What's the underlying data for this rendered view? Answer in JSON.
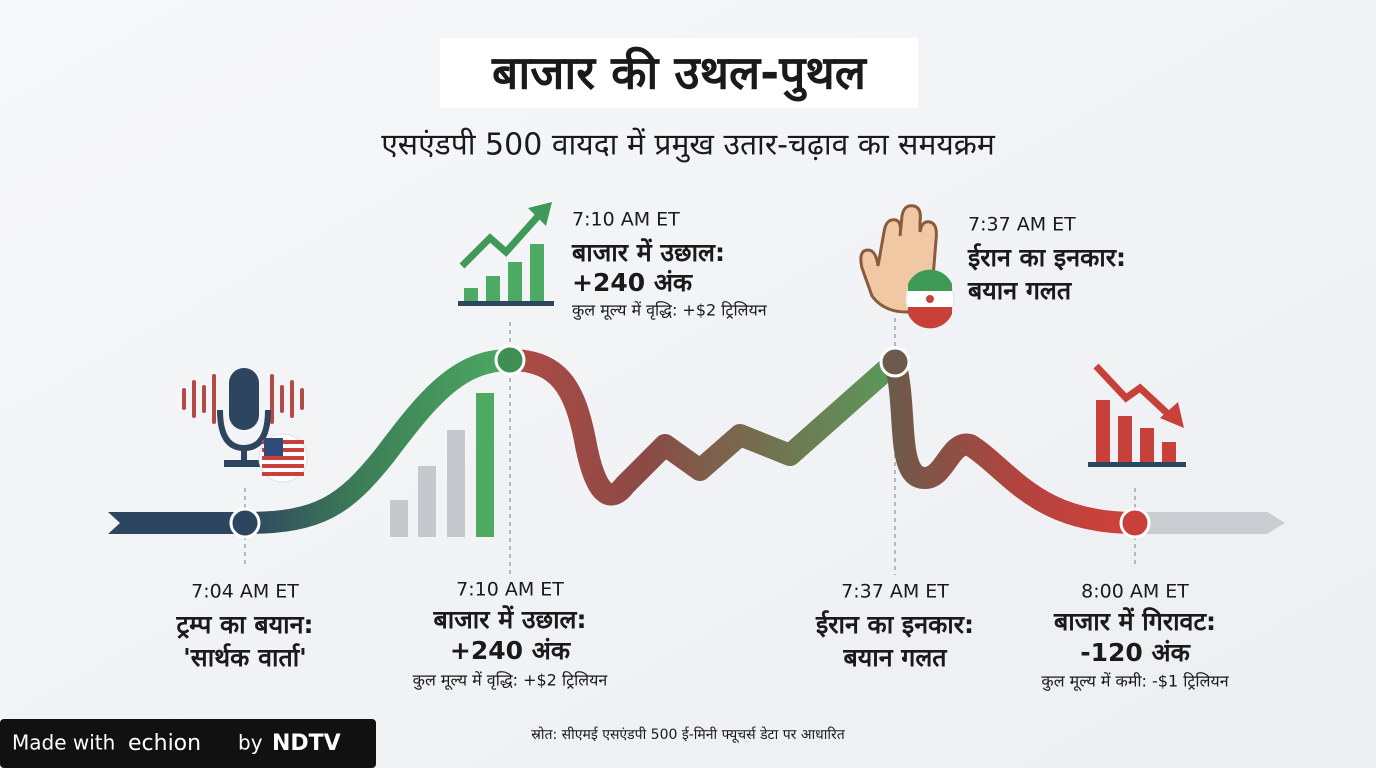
{
  "header": {
    "title": "बाजार की उथल-पुथल",
    "subtitle": "एसएंडपी 500 वायदा में प्रमुख उतार-चढ़ाव का समयक्रम"
  },
  "callouts": [
    {
      "time": "7:10 AM ET",
      "lines": [
        "बाजार में उछाल:",
        "+240 अंक"
      ],
      "note": "कुल मूल्य में वृद्धि: +$2 ट्रिलियन"
    },
    {
      "time": "7:37 AM ET",
      "lines": [
        "ईरान का इनकार:",
        "बयान गलत"
      ]
    }
  ],
  "events": [
    {
      "time": "7:04 AM ET",
      "lines": [
        "ट्रम्प का बयान:",
        "'सार्थक वार्ता'"
      ]
    },
    {
      "time": "7:10 AM ET",
      "lines": [
        "बाजार में उछाल:",
        "+240 अंक"
      ],
      "note": "कुल मूल्य में वृद्धि: +$2 ट्रिलियन"
    },
    {
      "time": "7:37 AM ET",
      "lines": [
        "ईरान का इनकार:",
        "बयान गलत"
      ]
    },
    {
      "time": "8:00 AM ET",
      "lines": [
        "बाजार में गिरावट:",
        "-120 अंक"
      ],
      "note": "कुल मूल्य में कमी: -$1 ट्रिलियन"
    }
  ],
  "source": "स्रोत: सीएमई एसएंडपी 500 ई-मिनी फ्यूचर्स डेटा पर आधारित",
  "footer": {
    "made_with": "Made with",
    "brand": "echion",
    "by": "by",
    "publisher": "NDTV"
  }
}
